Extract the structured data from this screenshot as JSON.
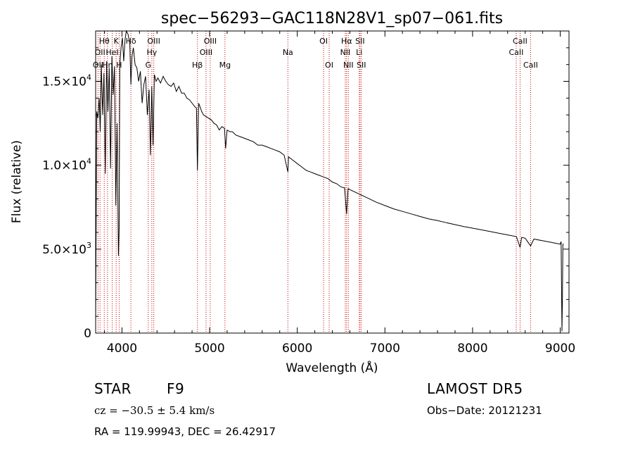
{
  "chart_data": {
    "type": "line",
    "title": "spec−56293−GAC118N28V1_sp07−061.fits",
    "xlabel": "Wavelength (Å)",
    "ylabel": "Flux (relative)",
    "xlim": [
      3700,
      9100
    ],
    "ylim": [
      0,
      18000
    ],
    "x_ticks": [
      4000,
      5000,
      6000,
      7000,
      8000,
      9000
    ],
    "x_tick_labels": [
      "4000",
      "5000",
      "6000",
      "7000",
      "8000",
      "9000"
    ],
    "y_ticks": [
      0,
      5000,
      10000,
      15000
    ],
    "y_tick_labels": [
      {
        "mantissa": "0",
        "exp": ""
      },
      {
        "mantissa": "5.0×10",
        "exp": "3"
      },
      {
        "mantissa": "1.0×10",
        "exp": "4"
      },
      {
        "mantissa": "1.5×10",
        "exp": "4"
      }
    ],
    "grid": false,
    "series": [
      {
        "color": "#000000",
        "x": [
          3700,
          3712,
          3725,
          3740,
          3752,
          3765,
          3780,
          3795,
          3810,
          3825,
          3840,
          3855,
          3870,
          3885,
          3900,
          3915,
          3930,
          3945,
          3960,
          3968,
          3975,
          3990,
          4005,
          4020,
          4035,
          4050,
          4070,
          4090,
          4102,
          4115,
          4130,
          4150,
          4170,
          4190,
          4210,
          4230,
          4250,
          4270,
          4290,
          4310,
          4325,
          4340,
          4355,
          4370,
          4390,
          4410,
          4440,
          4470,
          4500,
          4530,
          4560,
          4590,
          4620,
          4650,
          4680,
          4710,
          4740,
          4770,
          4800,
          4830,
          4850,
          4861,
          4875,
          4890,
          4910,
          4930,
          4960,
          4990,
          5020,
          5050,
          5080,
          5110,
          5140,
          5170,
          5183,
          5200,
          5230,
          5260,
          5300,
          5350,
          5400,
          5450,
          5500,
          5550,
          5600,
          5650,
          5700,
          5750,
          5800,
          5850,
          5893,
          5900,
          5950,
          6000,
          6050,
          6100,
          6150,
          6200,
          6250,
          6300,
          6350,
          6400,
          6450,
          6500,
          6540,
          6563,
          6580,
          6620,
          6700,
          6800,
          6900,
          7000,
          7100,
          7200,
          7300,
          7400,
          7500,
          7600,
          7700,
          7800,
          7900,
          8000,
          8100,
          8200,
          8300,
          8400,
          8500,
          8542,
          8560,
          8600,
          8662,
          8700,
          8800,
          8900,
          8950,
          9000,
          9010,
          9020,
          9025,
          9030,
          9040
        ],
        "y": [
          600,
          13200,
          12800,
          14000,
          12000,
          16000,
          13000,
          15500,
          9500,
          16200,
          13200,
          15800,
          9800,
          16500,
          14200,
          15900,
          7600,
          12500,
          4600,
          6200,
          16000,
          17000,
          17600,
          16200,
          17500,
          18000,
          17800,
          17200,
          14800,
          16500,
          17000,
          16000,
          15800,
          15000,
          15600,
          13700,
          14800,
          15300,
          13000,
          14500,
          10600,
          14700,
          11200,
          15400,
          15000,
          15200,
          14900,
          15300,
          15000,
          14800,
          14700,
          14900,
          14400,
          14700,
          14300,
          14300,
          14000,
          13900,
          13700,
          13500,
          13400,
          9700,
          13700,
          13500,
          13200,
          13000,
          12900,
          12800,
          12700,
          12500,
          12400,
          12100,
          12300,
          12200,
          11000,
          12100,
          12000,
          12000,
          11800,
          11700,
          11600,
          11500,
          11400,
          11200,
          11200,
          11100,
          11000,
          10900,
          10800,
          10600,
          9600,
          10500,
          10300,
          10100,
          9900,
          9700,
          9600,
          9500,
          9400,
          9300,
          9200,
          9000,
          8900,
          8700,
          8650,
          7100,
          8600,
          8500,
          8300,
          8050,
          7800,
          7600,
          7400,
          7250,
          7100,
          6950,
          6800,
          6700,
          6580,
          6460,
          6350,
          6250,
          6150,
          6050,
          5950,
          5850,
          5750,
          5100,
          5700,
          5650,
          5200,
          5600,
          5500,
          5400,
          5350,
          5300,
          5450,
          100,
          2100,
          5300,
          5300
        ]
      }
    ],
    "line_markers": [
      {
        "x": 3727,
        "label": "OII",
        "row": 3
      },
      {
        "x": 3750,
        "label": "OII",
        "row": 2
      },
      {
        "x": 3798,
        "label": "Hθ",
        "row": 1
      },
      {
        "x": 3835,
        "label": "Hη",
        "row": 3
      },
      {
        "x": 3889,
        "label": "HeI",
        "row": 2
      },
      {
        "x": 3934,
        "label": "K",
        "row": 1
      },
      {
        "x": 3968,
        "label": "H",
        "row": 3
      },
      {
        "x": 4102,
        "label": "Hδ",
        "row": 1
      },
      {
        "x": 4300,
        "label": "G",
        "row": 3
      },
      {
        "x": 4341,
        "label": "Hγ",
        "row": 2
      },
      {
        "x": 4363,
        "label": "OIII",
        "row": 1
      },
      {
        "x": 4861,
        "label": "Hβ",
        "row": 3
      },
      {
        "x": 4959,
        "label": "OIII",
        "row": 2
      },
      {
        "x": 5007,
        "label": "OIII",
        "row": 1
      },
      {
        "x": 5175,
        "label": "Mg",
        "row": 3
      },
      {
        "x": 5893,
        "label": "Na",
        "row": 2
      },
      {
        "x": 6300,
        "label": "OI",
        "row": 1
      },
      {
        "x": 6364,
        "label": "OI",
        "row": 3
      },
      {
        "x": 6548,
        "label": "NII",
        "row": 2
      },
      {
        "x": 6563,
        "label": "Hα",
        "row": 1
      },
      {
        "x": 6583,
        "label": "NII",
        "row": 3
      },
      {
        "x": 6707,
        "label": "Li",
        "row": 2
      },
      {
        "x": 6716,
        "label": "SII",
        "row": 1
      },
      {
        "x": 6731,
        "label": "SII",
        "row": 3
      },
      {
        "x": 8498,
        "label": "CaII",
        "row": 2
      },
      {
        "x": 8542,
        "label": "CaII",
        "row": 1
      },
      {
        "x": 8662,
        "label": "CaII",
        "row": 3
      }
    ],
    "marker_color": "#cc0000"
  },
  "info": {
    "object_type": "STAR",
    "subclass": "F9",
    "survey": "LAMOST DR5",
    "cz": "cz = −30.5 ± 5.4 km/s",
    "obs_date": "Obs−Date: 20121231",
    "coords": "RA = 119.99943, DEC =  26.42917"
  }
}
